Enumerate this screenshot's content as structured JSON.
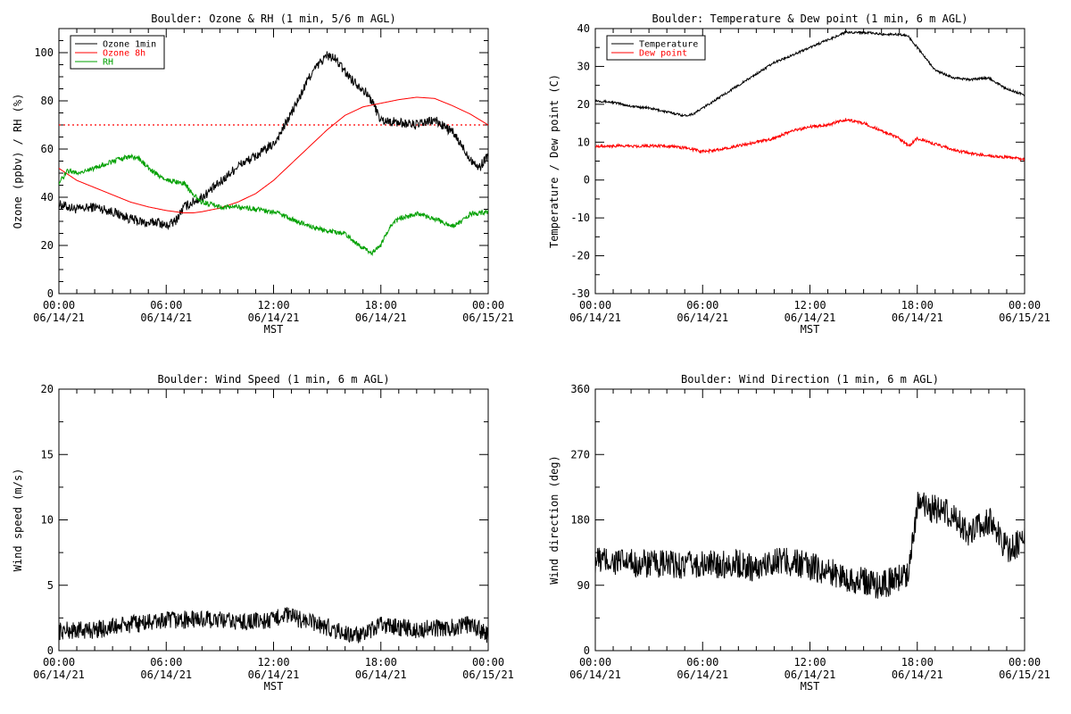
{
  "chart_data": [
    {
      "type": "line",
      "title": "Boulder: Ozone & RH (1 min, 5/6 m AGL)",
      "xlabel": "MST",
      "ylabel": "Ozone (ppbv) / RH (%)",
      "xlim": [
        0,
        24
      ],
      "ylim": [
        0,
        110
      ],
      "x_tick_values": [
        0,
        6,
        12,
        18,
        24
      ],
      "x_tick_labels": [
        [
          "00:00",
          "06/14/21"
        ],
        [
          "06:00",
          "06/14/21"
        ],
        [
          "12:00",
          "06/14/21"
        ],
        [
          "18:00",
          "06/14/21"
        ],
        [
          "00:00",
          "06/15/21"
        ]
      ],
      "y_ticks": [
        0,
        20,
        40,
        60,
        80,
        100
      ],
      "y_minor_step": 5,
      "legend_position": "top-left",
      "noise": [
        2,
        0,
        1
      ],
      "series": [
        {
          "name": "Ozone 1min",
          "color": "#000000",
          "points": [
            [
              0,
              37
            ],
            [
              1,
              35
            ],
            [
              2,
              36
            ],
            [
              3,
              34
            ],
            [
              4,
              31
            ],
            [
              5,
              29
            ],
            [
              5.5,
              30
            ],
            [
              6,
              28
            ],
            [
              6.5,
              30
            ],
            [
              7,
              36
            ],
            [
              8,
              40
            ],
            [
              9,
              46
            ],
            [
              10,
              53
            ],
            [
              11,
              57
            ],
            [
              12,
              62
            ],
            [
              12.5,
              68
            ],
            [
              13,
              75
            ],
            [
              13.5,
              82
            ],
            [
              14,
              90
            ],
            [
              14.5,
              95
            ],
            [
              15,
              99
            ],
            [
              15.5,
              97
            ],
            [
              16,
              92
            ],
            [
              16.5,
              88
            ],
            [
              17,
              85
            ],
            [
              17.5,
              80
            ],
            [
              18,
              72
            ],
            [
              19,
              71
            ],
            [
              20,
              70
            ],
            [
              21,
              72
            ],
            [
              22,
              67
            ],
            [
              23,
              56
            ],
            [
              23.5,
              52
            ],
            [
              24,
              58
            ]
          ]
        },
        {
          "name": "Ozone 8h",
          "color": "#ff0000",
          "points": [
            [
              0,
              52
            ],
            [
              1,
              47
            ],
            [
              2,
              44
            ],
            [
              3,
              41
            ],
            [
              4,
              38
            ],
            [
              5,
              36
            ],
            [
              6,
              34.5
            ],
            [
              7,
              33.5
            ],
            [
              7.5,
              33.5
            ],
            [
              8,
              34
            ],
            [
              9,
              35.5
            ],
            [
              10,
              38
            ],
            [
              11,
              41.5
            ],
            [
              12,
              47
            ],
            [
              13,
              54
            ],
            [
              14,
              61
            ],
            [
              15,
              68
            ],
            [
              16,
              74
            ],
            [
              17,
              77.5
            ],
            [
              18,
              79
            ],
            [
              19,
              80.5
            ],
            [
              20,
              81.5
            ],
            [
              21,
              81
            ],
            [
              22,
              78
            ],
            [
              23,
              74.5
            ],
            [
              24,
              70
            ]
          ]
        },
        {
          "name": "RH",
          "color": "#00a000",
          "points": [
            [
              0,
              46
            ],
            [
              0.5,
              51
            ],
            [
              1,
              50
            ],
            [
              2,
              52
            ],
            [
              3,
              55
            ],
            [
              4,
              57
            ],
            [
              4.5,
              56
            ],
            [
              5,
              52
            ],
            [
              6,
              47
            ],
            [
              7,
              46
            ],
            [
              7.5,
              41
            ],
            [
              8,
              38
            ],
            [
              9,
              36
            ],
            [
              10,
              36
            ],
            [
              11,
              35
            ],
            [
              12,
              34
            ],
            [
              13,
              31
            ],
            [
              14,
              28
            ],
            [
              15,
              26
            ],
            [
              16,
              25
            ],
            [
              16.5,
              22
            ],
            [
              17,
              19
            ],
            [
              17.5,
              17
            ],
            [
              18,
              20
            ],
            [
              18.5,
              28
            ],
            [
              19,
              31
            ],
            [
              20,
              33
            ],
            [
              21,
              31
            ],
            [
              22,
              28
            ],
            [
              22.5,
              30
            ],
            [
              23,
              33
            ],
            [
              24,
              34
            ]
          ]
        }
      ],
      "reference_line": {
        "y": 70,
        "color": "#ff0000",
        "style": "dotted"
      }
    },
    {
      "type": "line",
      "title": "Boulder: Temperature & Dew point (1 min, 6 m AGL)",
      "xlabel": "MST",
      "ylabel": "Temperature / Dew point (C)",
      "xlim": [
        0,
        24
      ],
      "ylim": [
        -30,
        40
      ],
      "x_tick_values": [
        0,
        6,
        12,
        18,
        24
      ],
      "x_tick_labels": [
        [
          "00:00",
          "06/14/21"
        ],
        [
          "06:00",
          "06/14/21"
        ],
        [
          "12:00",
          "06/14/21"
        ],
        [
          "18:00",
          "06/14/21"
        ],
        [
          "00:00",
          "06/15/21"
        ]
      ],
      "y_ticks": [
        -30,
        -20,
        -10,
        0,
        10,
        20,
        30,
        40
      ],
      "y_minor_step": 5,
      "legend_position": "top-left",
      "noise": [
        0.3,
        0.4
      ],
      "series": [
        {
          "name": "Temperature",
          "color": "#000000",
          "points": [
            [
              0,
              21
            ],
            [
              1,
              20.5
            ],
            [
              2,
              19.5
            ],
            [
              3,
              19
            ],
            [
              4,
              18
            ],
            [
              5,
              17
            ],
            [
              5.5,
              17.5
            ],
            [
              6,
              19
            ],
            [
              7,
              22
            ],
            [
              8,
              25
            ],
            [
              9,
              28
            ],
            [
              10,
              31
            ],
            [
              11,
              33
            ],
            [
              12,
              35
            ],
            [
              13,
              37
            ],
            [
              14,
              39
            ],
            [
              15,
              39
            ],
            [
              16,
              38.5
            ],
            [
              17,
              38.5
            ],
            [
              17.5,
              38
            ],
            [
              18,
              35
            ],
            [
              19,
              29
            ],
            [
              20,
              27
            ],
            [
              21,
              26.5
            ],
            [
              22,
              27
            ],
            [
              23,
              24
            ],
            [
              24,
              22.5
            ]
          ]
        },
        {
          "name": "Dew point",
          "color": "#ff0000",
          "points": [
            [
              0,
              9
            ],
            [
              1,
              9
            ],
            [
              2,
              9
            ],
            [
              3,
              9
            ],
            [
              4,
              9
            ],
            [
              5,
              8.5
            ],
            [
              6,
              7.5
            ],
            [
              7,
              8
            ],
            [
              8,
              9
            ],
            [
              9,
              10
            ],
            [
              10,
              11
            ],
            [
              11,
              13
            ],
            [
              12,
              14
            ],
            [
              13,
              14.5
            ],
            [
              14,
              16
            ],
            [
              15,
              15
            ],
            [
              16,
              13
            ],
            [
              17,
              11
            ],
            [
              17.5,
              9
            ],
            [
              18,
              11
            ],
            [
              19,
              9.5
            ],
            [
              20,
              8
            ],
            [
              21,
              7
            ],
            [
              22,
              6.5
            ],
            [
              23,
              6
            ],
            [
              24,
              5.5
            ]
          ]
        }
      ]
    },
    {
      "type": "line",
      "title": "Boulder: Wind Speed (1 min, 6 m AGL)",
      "xlabel": "MST",
      "ylabel": "Wind speed (m/s)",
      "xlim": [
        0,
        24
      ],
      "ylim": [
        0,
        20
      ],
      "x_tick_values": [
        0,
        6,
        12,
        18,
        24
      ],
      "x_tick_labels": [
        [
          "00:00",
          "06/14/21"
        ],
        [
          "06:00",
          "06/14/21"
        ],
        [
          "12:00",
          "06/14/21"
        ],
        [
          "18:00",
          "06/14/21"
        ],
        [
          "00:00",
          "06/15/21"
        ]
      ],
      "y_ticks": [
        0,
        5,
        10,
        15,
        20
      ],
      "y_minor_step": 2.5,
      "noise": [
        0.7
      ],
      "series": [
        {
          "color": "#000000",
          "points": [
            [
              0,
              1.5
            ],
            [
              2,
              1.6
            ],
            [
              4,
              2.0
            ],
            [
              6,
              2.3
            ],
            [
              8,
              2.4
            ],
            [
              10,
              2.2
            ],
            [
              12,
              2.3
            ],
            [
              12.5,
              2.8
            ],
            [
              13,
              2.6
            ],
            [
              14,
              2.2
            ],
            [
              15,
              1.8
            ],
            [
              16,
              1.3
            ],
            [
              17,
              1.1
            ],
            [
              18,
              2.0
            ],
            [
              19,
              1.8
            ],
            [
              20,
              1.6
            ],
            [
              21,
              1.7
            ],
            [
              22,
              1.8
            ],
            [
              23,
              2.0
            ],
            [
              24,
              1.2
            ]
          ]
        }
      ]
    },
    {
      "type": "line",
      "title": "Boulder: Wind Direction (1 min, 6 m AGL)",
      "xlabel": "MST",
      "ylabel": "Wind direction (deg)",
      "xlim": [
        0,
        24
      ],
      "ylim": [
        0,
        360
      ],
      "x_tick_values": [
        0,
        6,
        12,
        18,
        24
      ],
      "x_tick_labels": [
        [
          "00:00",
          "06/14/21"
        ],
        [
          "06:00",
          "06/14/21"
        ],
        [
          "12:00",
          "06/14/21"
        ],
        [
          "18:00",
          "06/14/21"
        ],
        [
          "00:00",
          "06/15/21"
        ]
      ],
      "y_ticks": [
        0,
        90,
        180,
        270,
        360
      ],
      "y_minor_step": 45,
      "noise": [
        20
      ],
      "series": [
        {
          "color": "#000000",
          "points": [
            [
              0,
              125
            ],
            [
              2,
              120
            ],
            [
              4,
              118
            ],
            [
              6,
              118
            ],
            [
              8,
              120
            ],
            [
              9,
              112
            ],
            [
              10,
              125
            ],
            [
              11,
              122
            ],
            [
              12,
              115
            ],
            [
              13,
              110
            ],
            [
              14,
              100
            ],
            [
              15,
              95
            ],
            [
              16,
              90
            ],
            [
              17,
              100
            ],
            [
              17.5,
              110
            ],
            [
              18,
              200
            ],
            [
              19,
              195
            ],
            [
              20,
              185
            ],
            [
              21,
              160
            ],
            [
              22,
              180
            ],
            [
              23,
              140
            ],
            [
              24,
              150
            ]
          ]
        }
      ]
    }
  ]
}
